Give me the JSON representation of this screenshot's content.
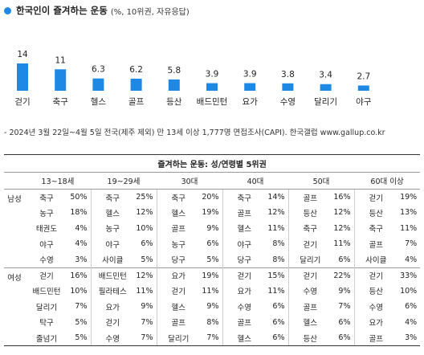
{
  "title": "한국인이 즐겨하는 운동",
  "subtitle": "(%, 10위권, 자유응답)",
  "colors": {
    "bar": "#1e88e5",
    "accent": "#1e88e5"
  },
  "chart_data": {
    "type": "bar",
    "title": "한국인이 즐겨하는 운동",
    "subtitle": "(%, 10위권, 자유응답)",
    "categories": [
      "걷기",
      "축구",
      "헬스",
      "골프",
      "등산",
      "배드민턴",
      "요가",
      "수영",
      "달리기",
      "야구"
    ],
    "values": [
      14,
      11,
      6.3,
      6.2,
      5.8,
      3.9,
      3.9,
      3.8,
      3.4,
      2.7
    ],
    "value_labels": [
      "14",
      "11",
      "6.3",
      "6.2",
      "5.8",
      "3.9",
      "3.9",
      "3.8",
      "3.4",
      "2.7"
    ],
    "ylim": [
      0,
      14
    ],
    "grid": false,
    "legend": "none"
  },
  "source": "- 2024년 3월 22일~4월 5일 전국(제주 제외) 만 13세 이상 1,777명 면접조사(CAPI). 한국갤럽 www.gallup.co.kr",
  "table": {
    "title": "즐겨하는 운동: 성/연령별 5위권",
    "age_groups": [
      "13~18세",
      "19~29세",
      "30대",
      "40대",
      "50대",
      "60대 이상"
    ],
    "groups": [
      {
        "gender": "남성",
        "rows": [
          [
            [
              "축구",
              "50%"
            ],
            [
              "축구",
              "25%"
            ],
            [
              "축구",
              "20%"
            ],
            [
              "축구",
              "14%"
            ],
            [
              "골프",
              "16%"
            ],
            [
              "걷기",
              "19%"
            ]
          ],
          [
            [
              "농구",
              "18%"
            ],
            [
              "헬스",
              "12%"
            ],
            [
              "헬스",
              "19%"
            ],
            [
              "골프",
              "12%"
            ],
            [
              "등산",
              "12%"
            ],
            [
              "등산",
              "13%"
            ]
          ],
          [
            [
              "태권도",
              "4%"
            ],
            [
              "농구",
              "10%"
            ],
            [
              "골프",
              "9%"
            ],
            [
              "헬스",
              "11%"
            ],
            [
              "축구",
              "12%"
            ],
            [
              "축구",
              "11%"
            ]
          ],
          [
            [
              "야구",
              "4%"
            ],
            [
              "야구",
              "6%"
            ],
            [
              "농구",
              "6%"
            ],
            [
              "야구",
              "8%"
            ],
            [
              "걷기",
              "11%"
            ],
            [
              "골프",
              "7%"
            ]
          ],
          [
            [
              "수영",
              "3%"
            ],
            [
              "사이클",
              "5%"
            ],
            [
              "당구",
              "5%"
            ],
            [
              "당구",
              "8%"
            ],
            [
              "달리기",
              "6%"
            ],
            [
              "사이클",
              "4%"
            ]
          ]
        ]
      },
      {
        "gender": "여성",
        "rows": [
          [
            [
              "걷기",
              "16%"
            ],
            [
              "배드민턴",
              "12%"
            ],
            [
              "요가",
              "19%"
            ],
            [
              "걷기",
              "15%"
            ],
            [
              "걷기",
              "22%"
            ],
            [
              "걷기",
              "33%"
            ]
          ],
          [
            [
              "배드민턴",
              "10%"
            ],
            [
              "필라테스",
              "11%"
            ],
            [
              "걷기",
              "11%"
            ],
            [
              "요가",
              "11%"
            ],
            [
              "수영",
              "9%"
            ],
            [
              "등산",
              "10%"
            ]
          ],
          [
            [
              "달리기",
              "7%"
            ],
            [
              "요가",
              "9%"
            ],
            [
              "헬스",
              "9%"
            ],
            [
              "수영",
              "6%"
            ],
            [
              "골프",
              "7%"
            ],
            [
              "수영",
              "6%"
            ]
          ],
          [
            [
              "탁구",
              "5%"
            ],
            [
              "걷기",
              "7%"
            ],
            [
              "골프",
              "8%"
            ],
            [
              "골프",
              "6%"
            ],
            [
              "헬스",
              "6%"
            ],
            [
              "요가",
              "4%"
            ]
          ],
          [
            [
              "줄넘기",
              "5%"
            ],
            [
              "수영",
              "7%"
            ],
            [
              "달리기",
              "7%"
            ],
            [
              "헬스",
              "6%"
            ],
            [
              "등산",
              "6%"
            ],
            [
              "골프",
              "3%"
            ]
          ]
        ]
      }
    ]
  }
}
